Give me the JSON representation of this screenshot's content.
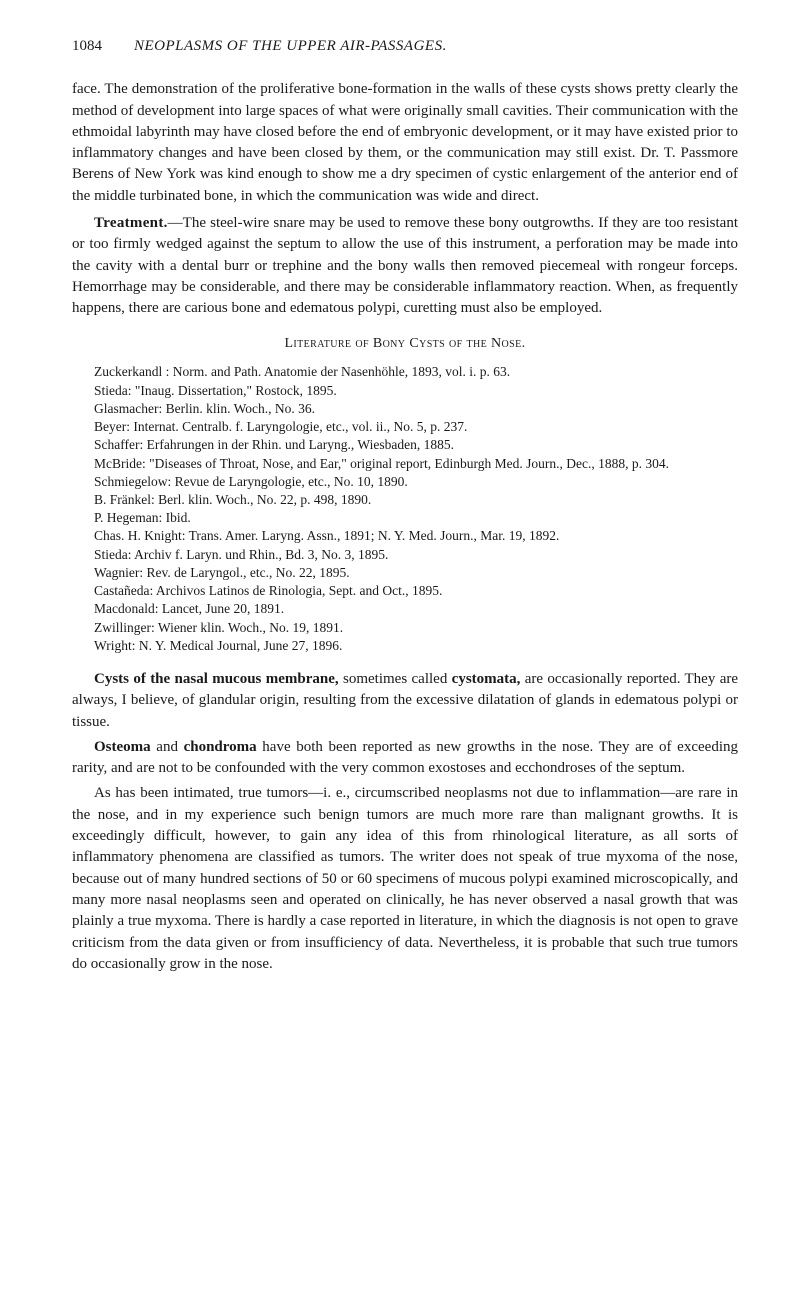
{
  "header": {
    "page_number": "1084",
    "running_title": "NEOPLASMS OF THE UPPER AIR-PASSAGES."
  },
  "paragraphs": {
    "p1": "face. The demonstration of the proliferative bone-formation in the walls of these cysts shows pretty clearly the method of development into large spaces of what were originally small cavities. Their communication with the ethmoidal labyrinth may have closed before the end of embryonic development, or it may have existed prior to inflammatory changes and have been closed by them, or the communication may still exist. Dr. T. Passmore Berens of New York was kind enough to show me a dry specimen of cystic enlargement of the anterior end of the middle turbinated bone, in which the communication was wide and direct.",
    "p2_label": "Treatment.",
    "p2": "—The steel-wire snare may be used to remove these bony outgrowths. If they are too resistant or too firmly wedged against the septum to allow the use of this instrument, a perforation may be made into the cavity with a dental burr or trephine and the bony walls then removed piecemeal with rongeur forceps. Hemorrhage may be considerable, and there may be considerable inflammatory reaction. When, as frequently happens, there are carious bone and edematous polypi, curetting must also be employed."
  },
  "literature": {
    "heading": "Literature of Bony Cysts of the Nose.",
    "refs": [
      "Zuckerkandl : Norm. and Path. Anatomie der Nasenhöhle, 1893, vol. i. p. 63.",
      "Stieda: \"Inaug. Dissertation,\" Rostock, 1895.",
      "Glasmacher: Berlin. klin. Woch., No. 36.",
      "Beyer: Internat. Centralb. f. Laryngologie, etc., vol. ii., No. 5, p. 237.",
      "Schaffer: Erfahrungen in der Rhin. und Laryng., Wiesbaden, 1885.",
      "McBride: \"Diseases of Throat, Nose, and Ear,\" original report, Edinburgh Med. Journ., Dec., 1888, p. 304.",
      "Schmiegelow: Revue de Laryngologie, etc., No. 10, 1890.",
      "B. Fränkel: Berl. klin. Woch., No. 22, p. 498, 1890.",
      "P. Hegeman: Ibid.",
      "Chas. H. Knight: Trans. Amer. Laryng. Assn., 1891; N. Y. Med. Journ., Mar. 19, 1892.",
      "Stieda: Archiv f. Laryn. und Rhin., Bd. 3, No. 3, 1895.",
      "Wagnier: Rev. de Laryngol., etc., No. 22, 1895.",
      "Castañeda: Archivos Latinos de Rinologia, Sept. and Oct., 1895.",
      "Macdonald: Lancet, June 20, 1891.",
      "Zwillinger: Wiener klin. Woch., No. 19, 1891.",
      "Wright: N. Y. Medical Journal, June 27, 1896."
    ]
  },
  "sections": {
    "cysts_label": "Cysts of the nasal mucous membrane,",
    "cysts_text1": " sometimes called ",
    "cysts_bold2": "cystomata,",
    "cysts_text2": " are occasionally reported. They are always, I believe, of glandular origin, resulting from the excessive dilatation of glands in edematous polypi or tissue.",
    "osteoma_label": "Osteoma",
    "osteoma_mid": " and ",
    "chondroma_label": "chondroma",
    "osteoma_text": " have both been reported as new growths in the nose. They are of exceeding rarity, and are not to be confounded with the very common exostoses and ecchondroses of the septum.",
    "p_final": "As has been intimated, true tumors—i. e., circumscribed neoplasms not due to inflammation—are rare in the nose, and in my experience such benign tumors are much more rare than malignant growths. It is exceedingly difficult, however, to gain any idea of this from rhinological literature, as all sorts of inflammatory phenomena are classified as tumors. The writer does not speak of true myxoma of the nose, because out of many hundred sections of 50 or 60 specimens of mucous polypi examined microscopically, and many more nasal neoplasms seen and operated on clinically, he has never observed a nasal growth that was plainly a true myxoma. There is hardly a case reported in literature, in which the diagnosis is not open to grave criticism from the data given or from insufficiency of data. Nevertheless, it is probable that such true tumors do occasionally grow in the nose."
  }
}
